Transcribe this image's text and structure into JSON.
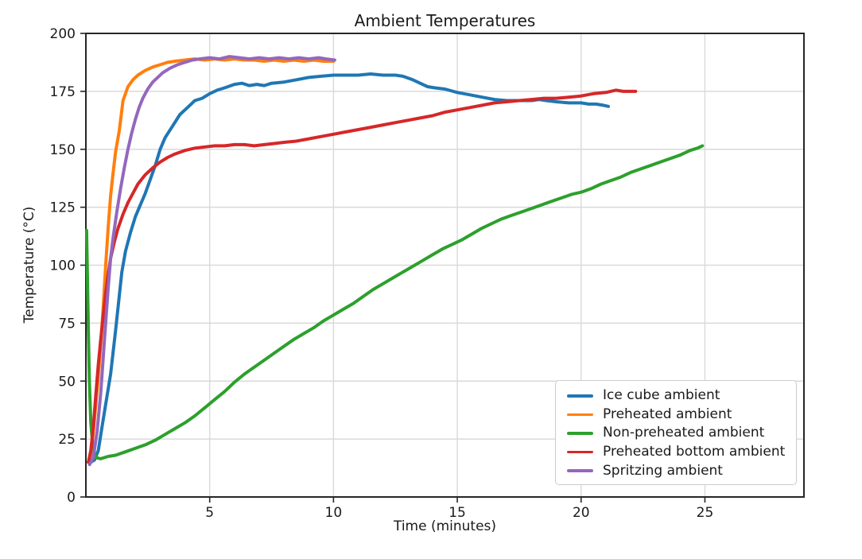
{
  "chart_data": {
    "type": "line",
    "title": "Ambient Temperatures",
    "xlabel": "Time (minutes)",
    "ylabel": "Temperature (°C)",
    "xlim": [
      0,
      29
    ],
    "ylim": [
      0,
      200
    ],
    "xticks": [
      5,
      10,
      15,
      20,
      25
    ],
    "yticks": [
      0,
      25,
      50,
      75,
      100,
      125,
      150,
      175,
      200
    ],
    "grid": true,
    "legend_position": "lower right",
    "series": [
      {
        "name": "Ice cube ambient",
        "color": "#1f77b4",
        "points": [
          [
            0.2,
            15
          ],
          [
            0.35,
            16
          ],
          [
            0.5,
            20
          ],
          [
            0.65,
            30
          ],
          [
            0.8,
            40
          ],
          [
            1.0,
            53
          ],
          [
            1.2,
            72
          ],
          [
            1.45,
            97
          ],
          [
            1.6,
            106
          ],
          [
            1.8,
            114
          ],
          [
            2.0,
            121
          ],
          [
            2.2,
            126
          ],
          [
            2.4,
            131
          ],
          [
            2.6,
            137
          ],
          [
            2.8,
            143
          ],
          [
            3.0,
            150
          ],
          [
            3.2,
            155
          ],
          [
            3.5,
            160
          ],
          [
            3.8,
            165
          ],
          [
            4.1,
            168
          ],
          [
            4.4,
            171
          ],
          [
            4.7,
            172
          ],
          [
            5.0,
            174
          ],
          [
            5.3,
            175.5
          ],
          [
            5.6,
            176.5
          ],
          [
            6.0,
            178
          ],
          [
            6.3,
            178.5
          ],
          [
            6.6,
            177.5
          ],
          [
            6.9,
            178
          ],
          [
            7.2,
            177.5
          ],
          [
            7.5,
            178.5
          ],
          [
            8.0,
            179
          ],
          [
            8.5,
            180
          ],
          [
            9.0,
            181
          ],
          [
            9.5,
            181.5
          ],
          [
            10.0,
            182
          ],
          [
            10.5,
            182
          ],
          [
            11.0,
            182
          ],
          [
            11.5,
            182.5
          ],
          [
            12.0,
            182
          ],
          [
            12.5,
            182
          ],
          [
            12.8,
            181.5
          ],
          [
            13.2,
            180
          ],
          [
            13.5,
            178.5
          ],
          [
            13.8,
            177
          ],
          [
            14.1,
            176.5
          ],
          [
            14.5,
            176
          ],
          [
            15.0,
            174.5
          ],
          [
            15.5,
            173.5
          ],
          [
            16.0,
            172.5
          ],
          [
            16.5,
            171.5
          ],
          [
            17.0,
            171
          ],
          [
            17.5,
            171
          ],
          [
            18.0,
            171
          ],
          [
            18.3,
            171.5
          ],
          [
            18.6,
            171
          ],
          [
            19.0,
            170.5
          ],
          [
            19.5,
            170
          ],
          [
            20.0,
            170
          ],
          [
            20.3,
            169.5
          ],
          [
            20.6,
            169.5
          ],
          [
            20.9,
            169
          ],
          [
            21.1,
            168.5
          ]
        ]
      },
      {
        "name": "Preheated ambient",
        "color": "#ff7f0e",
        "points": [
          [
            0.1,
            15
          ],
          [
            0.2,
            18
          ],
          [
            0.3,
            28
          ],
          [
            0.4,
            40
          ],
          [
            0.5,
            52
          ],
          [
            0.6,
            66
          ],
          [
            0.7,
            82
          ],
          [
            0.8,
            100
          ],
          [
            0.9,
            116
          ],
          [
            1.0,
            130
          ],
          [
            1.1,
            140
          ],
          [
            1.2,
            149
          ],
          [
            1.35,
            158
          ],
          [
            1.5,
            171
          ],
          [
            1.7,
            177
          ],
          [
            1.9,
            180
          ],
          [
            2.1,
            182
          ],
          [
            2.4,
            184
          ],
          [
            2.7,
            185.5
          ],
          [
            3.0,
            186.5
          ],
          [
            3.3,
            187.5
          ],
          [
            3.6,
            188
          ],
          [
            4.0,
            188.5
          ],
          [
            4.4,
            189
          ],
          [
            4.8,
            188.5
          ],
          [
            5.2,
            189
          ],
          [
            5.6,
            188.5
          ],
          [
            6.0,
            189
          ],
          [
            6.4,
            188.5
          ],
          [
            6.8,
            188.5
          ],
          [
            7.2,
            188
          ],
          [
            7.6,
            188.5
          ],
          [
            8.0,
            188
          ],
          [
            8.4,
            188.5
          ],
          [
            8.8,
            188
          ],
          [
            9.2,
            188.5
          ],
          [
            9.6,
            188
          ],
          [
            10.0,
            188
          ]
        ]
      },
      {
        "name": "Non-preheated ambient",
        "color": "#2ca02c",
        "points": [
          [
            0.03,
            115
          ],
          [
            0.06,
            96
          ],
          [
            0.1,
            72
          ],
          [
            0.14,
            50
          ],
          [
            0.2,
            32
          ],
          [
            0.28,
            22
          ],
          [
            0.4,
            17
          ],
          [
            0.6,
            16.5
          ],
          [
            0.9,
            17.5
          ],
          [
            1.2,
            18
          ],
          [
            1.6,
            19.5
          ],
          [
            2.0,
            21
          ],
          [
            2.4,
            22.5
          ],
          [
            2.8,
            24.5
          ],
          [
            3.2,
            27
          ],
          [
            3.6,
            29.5
          ],
          [
            4.0,
            32
          ],
          [
            4.4,
            35
          ],
          [
            4.8,
            38.5
          ],
          [
            5.2,
            42
          ],
          [
            5.6,
            45.5
          ],
          [
            6.0,
            49.5
          ],
          [
            6.4,
            53
          ],
          [
            6.8,
            56
          ],
          [
            7.2,
            59
          ],
          [
            7.6,
            62
          ],
          [
            8.0,
            65
          ],
          [
            8.4,
            68
          ],
          [
            8.8,
            70.5
          ],
          [
            9.2,
            73
          ],
          [
            9.6,
            76
          ],
          [
            10.0,
            78.5
          ],
          [
            10.4,
            81
          ],
          [
            10.8,
            83.5
          ],
          [
            11.2,
            86.5
          ],
          [
            11.6,
            89.5
          ],
          [
            12.0,
            92
          ],
          [
            12.4,
            94.5
          ],
          [
            12.8,
            97
          ],
          [
            13.2,
            99.5
          ],
          [
            13.6,
            102
          ],
          [
            14.0,
            104.5
          ],
          [
            14.4,
            107
          ],
          [
            14.8,
            109
          ],
          [
            15.2,
            111
          ],
          [
            15.6,
            113.5
          ],
          [
            16.0,
            116
          ],
          [
            16.4,
            118
          ],
          [
            16.8,
            120
          ],
          [
            17.2,
            121.5
          ],
          [
            17.6,
            123
          ],
          [
            18.0,
            124.5
          ],
          [
            18.4,
            126
          ],
          [
            18.8,
            127.5
          ],
          [
            19.2,
            129
          ],
          [
            19.6,
            130.5
          ],
          [
            20.0,
            131.5
          ],
          [
            20.4,
            133
          ],
          [
            20.8,
            135
          ],
          [
            21.2,
            136.5
          ],
          [
            21.6,
            138
          ],
          [
            22.0,
            140
          ],
          [
            22.4,
            141.5
          ],
          [
            22.8,
            143
          ],
          [
            23.2,
            144.5
          ],
          [
            23.6,
            146
          ],
          [
            24.0,
            147.5
          ],
          [
            24.4,
            149.5
          ],
          [
            24.7,
            150.5
          ],
          [
            24.9,
            151.5
          ]
        ]
      },
      {
        "name": "Preheated bottom ambient",
        "color": "#d62728",
        "points": [
          [
            0.1,
            15
          ],
          [
            0.2,
            20
          ],
          [
            0.3,
            30
          ],
          [
            0.4,
            44
          ],
          [
            0.5,
            57
          ],
          [
            0.6,
            68
          ],
          [
            0.7,
            78
          ],
          [
            0.8,
            88
          ],
          [
            0.9,
            96
          ],
          [
            1.0,
            103
          ],
          [
            1.15,
            110
          ],
          [
            1.3,
            116
          ],
          [
            1.5,
            122
          ],
          [
            1.7,
            127
          ],
          [
            1.9,
            131
          ],
          [
            2.1,
            135
          ],
          [
            2.4,
            139
          ],
          [
            2.7,
            142
          ],
          [
            3.0,
            144.5
          ],
          [
            3.3,
            146.5
          ],
          [
            3.6,
            148
          ],
          [
            4.0,
            149.5
          ],
          [
            4.4,
            150.5
          ],
          [
            4.8,
            151
          ],
          [
            5.2,
            151.5
          ],
          [
            5.6,
            151.5
          ],
          [
            6.0,
            152
          ],
          [
            6.4,
            152
          ],
          [
            6.8,
            151.5
          ],
          [
            7.2,
            152
          ],
          [
            7.6,
            152.5
          ],
          [
            8.0,
            153
          ],
          [
            8.5,
            153.5
          ],
          [
            9.0,
            154.5
          ],
          [
            9.5,
            155.5
          ],
          [
            10.0,
            156.5
          ],
          [
            10.5,
            157.5
          ],
          [
            11.0,
            158.5
          ],
          [
            11.5,
            159.5
          ],
          [
            12.0,
            160.5
          ],
          [
            12.5,
            161.5
          ],
          [
            13.0,
            162.5
          ],
          [
            13.5,
            163.5
          ],
          [
            14.0,
            164.5
          ],
          [
            14.5,
            166
          ],
          [
            15.0,
            167
          ],
          [
            15.5,
            168
          ],
          [
            16.0,
            169
          ],
          [
            16.5,
            170
          ],
          [
            17.0,
            170.5
          ],
          [
            17.5,
            171
          ],
          [
            18.0,
            171.5
          ],
          [
            18.5,
            172
          ],
          [
            19.0,
            172
          ],
          [
            19.5,
            172.5
          ],
          [
            20.0,
            173
          ],
          [
            20.5,
            174
          ],
          [
            21.0,
            174.5
          ],
          [
            21.4,
            175.5
          ],
          [
            21.7,
            175
          ],
          [
            22.0,
            175
          ],
          [
            22.2,
            175
          ]
        ]
      },
      {
        "name": "Spritzing ambient",
        "color": "#9467bd",
        "points": [
          [
            0.15,
            14
          ],
          [
            0.3,
            17
          ],
          [
            0.45,
            28
          ],
          [
            0.6,
            45
          ],
          [
            0.75,
            68
          ],
          [
            0.9,
            90
          ],
          [
            1.0,
            103
          ],
          [
            1.1,
            112
          ],
          [
            1.25,
            123
          ],
          [
            1.4,
            133
          ],
          [
            1.55,
            142
          ],
          [
            1.7,
            150
          ],
          [
            1.85,
            157
          ],
          [
            2.0,
            163
          ],
          [
            2.15,
            168
          ],
          [
            2.3,
            172
          ],
          [
            2.5,
            176
          ],
          [
            2.7,
            179
          ],
          [
            2.9,
            181
          ],
          [
            3.1,
            183
          ],
          [
            3.4,
            185
          ],
          [
            3.7,
            186.5
          ],
          [
            4.0,
            187.5
          ],
          [
            4.3,
            188.5
          ],
          [
            4.6,
            189
          ],
          [
            5.0,
            189.5
          ],
          [
            5.4,
            189
          ],
          [
            5.8,
            190
          ],
          [
            6.2,
            189.5
          ],
          [
            6.6,
            189
          ],
          [
            7.0,
            189.5
          ],
          [
            7.4,
            189
          ],
          [
            7.8,
            189.5
          ],
          [
            8.2,
            189
          ],
          [
            8.6,
            189.5
          ],
          [
            9.0,
            189
          ],
          [
            9.4,
            189.5
          ],
          [
            9.7,
            189
          ],
          [
            10.05,
            188.5
          ]
        ]
      }
    ]
  }
}
